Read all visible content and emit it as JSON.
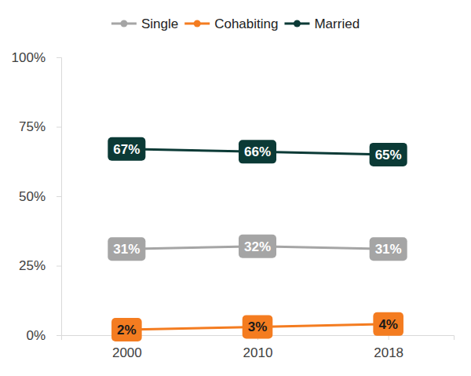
{
  "chart_data": {
    "type": "line",
    "categories": [
      "2000",
      "2010",
      "2018"
    ],
    "series": [
      {
        "name": "Single",
        "color": "#a5a5a5",
        "marker": "circle",
        "values": [
          31,
          32,
          31
        ],
        "value_labels": [
          "31%",
          "32%",
          "31%"
        ]
      },
      {
        "name": "Cohabiting",
        "color": "#f47c20",
        "marker": "circle",
        "values": [
          2,
          3,
          4
        ],
        "value_labels": [
          "2%",
          "3%",
          "4%"
        ]
      },
      {
        "name": "Married",
        "color": "#0b3a36",
        "marker": "circle",
        "values": [
          67,
          66,
          65
        ],
        "value_labels": [
          "67%",
          "66%",
          "65%"
        ]
      }
    ],
    "ylim": [
      0,
      100
    ],
    "yticks": [
      {
        "value": 0,
        "label": "0%"
      },
      {
        "value": 25,
        "label": "25%"
      },
      {
        "value": 50,
        "label": "50%"
      },
      {
        "value": 75,
        "label": "75%"
      },
      {
        "value": 100,
        "label": "100%"
      }
    ],
    "grid": false,
    "legend": "top",
    "data_labels": true
  }
}
